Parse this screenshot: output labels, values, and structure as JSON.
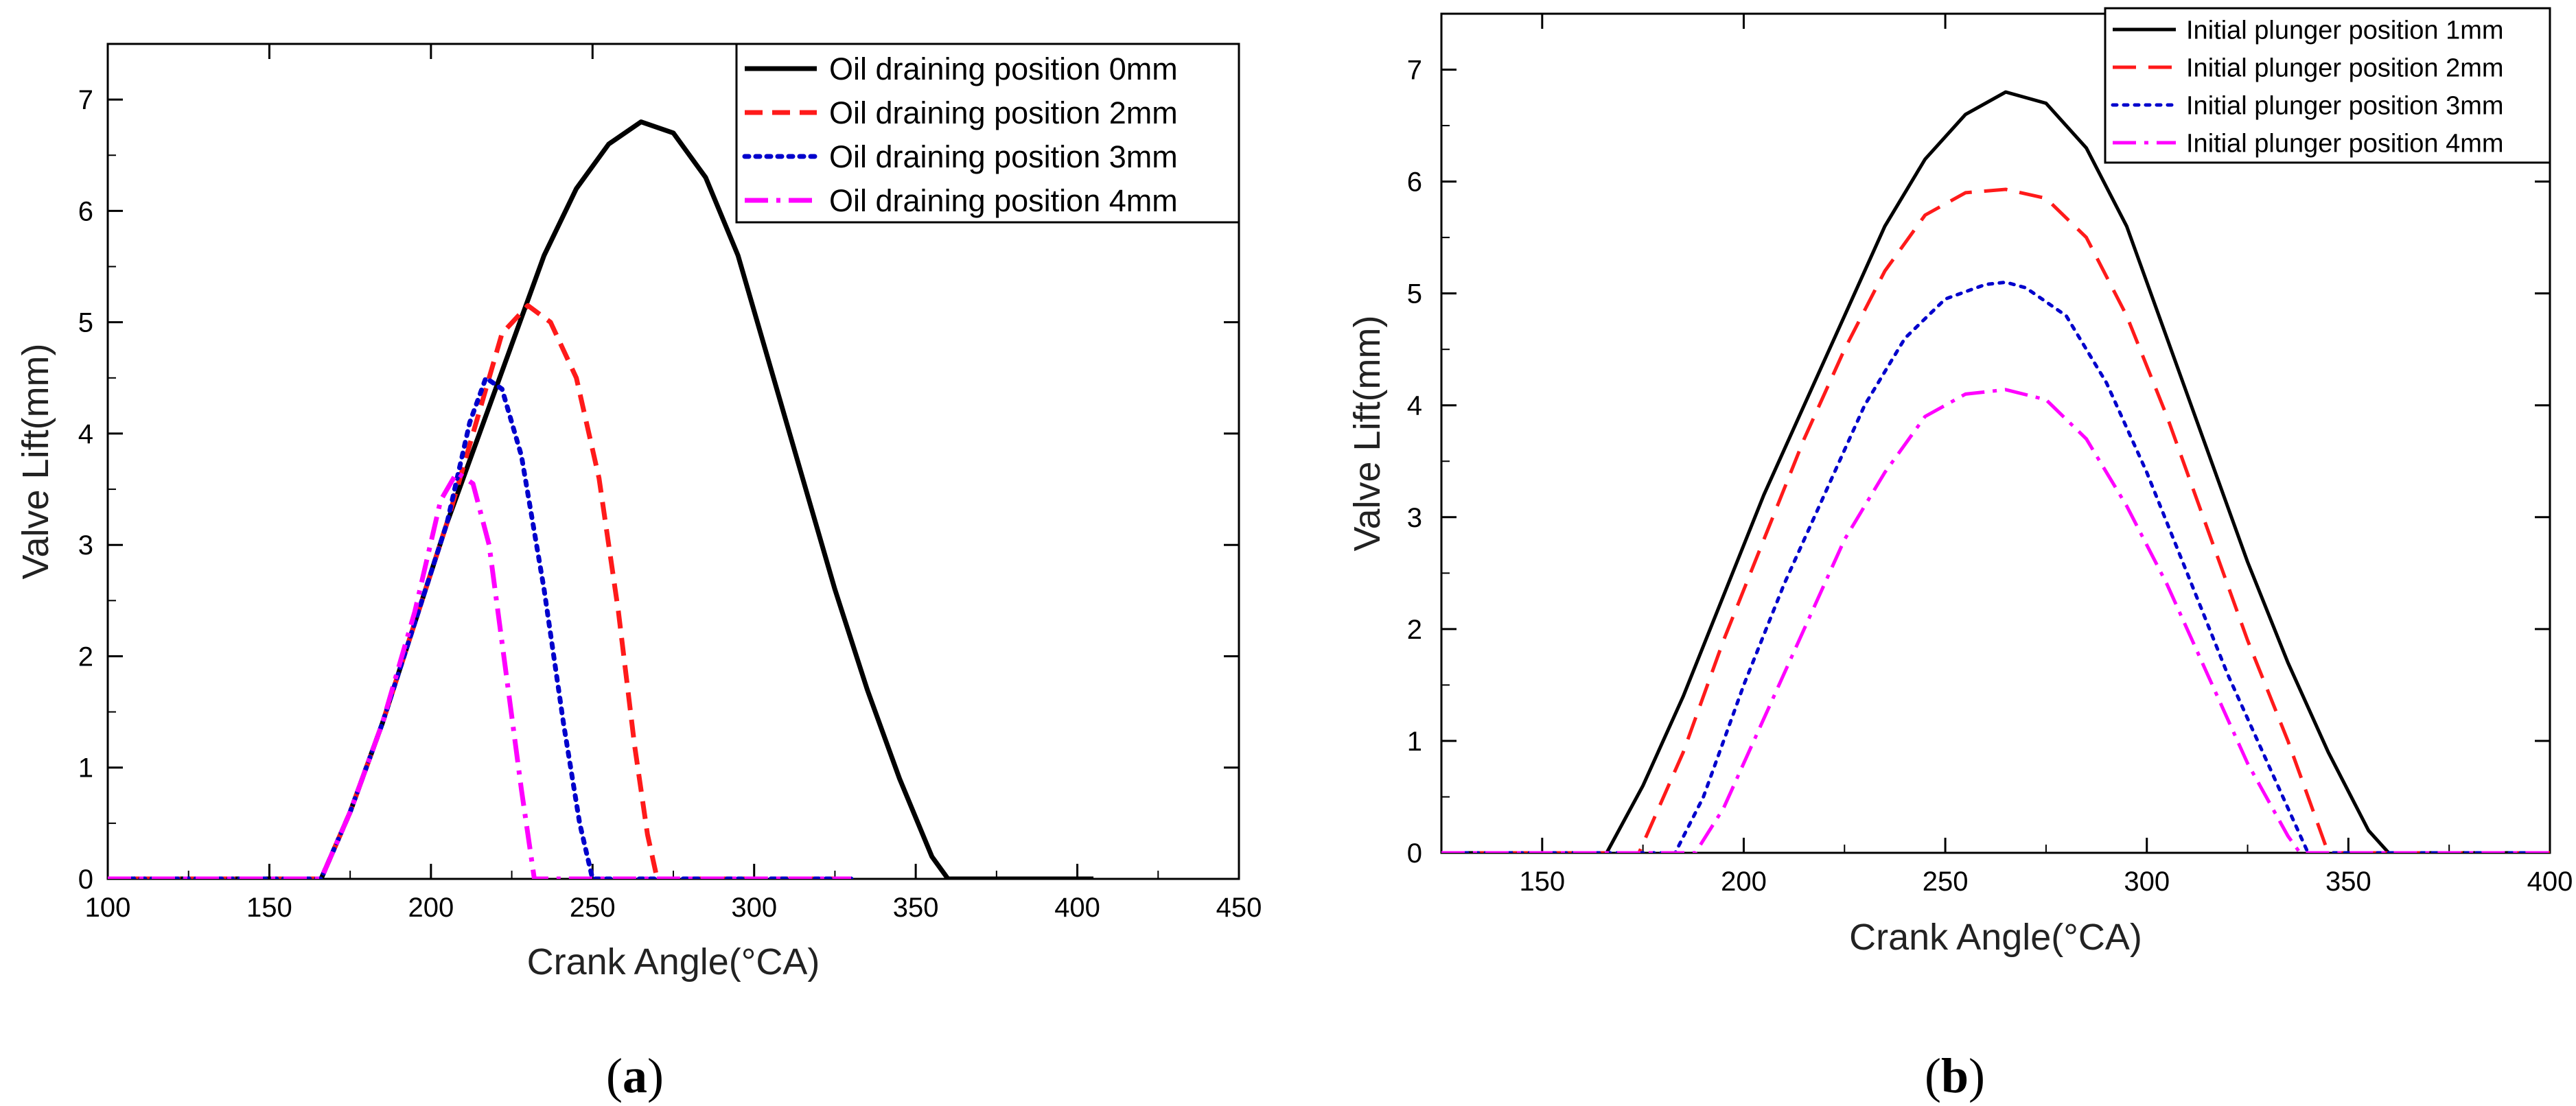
{
  "chart_data": [
    {
      "type": "line",
      "panel_label": "a",
      "xlabel": "Crank Angle(°CA)",
      "ylabel": "Valve Lift(mm)",
      "xlim": [
        100,
        450
      ],
      "ylim": [
        0,
        7.5
      ],
      "xticks": [
        100,
        150,
        200,
        250,
        300,
        350,
        400,
        450
      ],
      "yticks": [
        0,
        1,
        2,
        3,
        4,
        5,
        6,
        7
      ],
      "legend_position": "top-right",
      "series": [
        {
          "name": "Oil draining position 0mm",
          "color": "#000000",
          "style": "solid",
          "x": [
            100,
            166,
            175,
            185,
            195,
            205,
            215,
            225,
            235,
            245,
            255,
            265,
            275,
            285,
            295,
            305,
            315,
            325,
            335,
            345,
            355,
            360,
            405
          ],
          "y": [
            0,
            0,
            0.6,
            1.4,
            2.3,
            3.2,
            4.0,
            4.8,
            5.6,
            6.2,
            6.6,
            6.8,
            6.7,
            6.3,
            5.6,
            4.6,
            3.6,
            2.6,
            1.7,
            0.9,
            0.2,
            0,
            0
          ]
        },
        {
          "name": "Oil draining position 2mm",
          "color": "#ff1a1a",
          "style": "dashed",
          "x": [
            100,
            166,
            175,
            185,
            195,
            205,
            215,
            222,
            230,
            237,
            245,
            252,
            258,
            263,
            267,
            270,
            330
          ],
          "y": [
            0,
            0,
            0.6,
            1.4,
            2.3,
            3.2,
            4.2,
            4.9,
            5.15,
            5.0,
            4.5,
            3.6,
            2.4,
            1.2,
            0.4,
            0,
            0
          ]
        },
        {
          "name": "Oil draining position 3mm",
          "color": "#0000cc",
          "style": "dotted",
          "x": [
            100,
            166,
            175,
            185,
            195,
            205,
            212,
            217,
            222,
            228,
            235,
            241,
            246,
            250,
            330
          ],
          "y": [
            0,
            0,
            0.6,
            1.4,
            2.3,
            3.2,
            4.1,
            4.5,
            4.4,
            3.8,
            2.6,
            1.4,
            0.5,
            0,
            0
          ]
        },
        {
          "name": "Oil draining position 4mm",
          "color": "#ff00ff",
          "style": "dashdot",
          "x": [
            100,
            166,
            175,
            185,
            195,
            203,
            208,
            213,
            218,
            223,
            228,
            232,
            330
          ],
          "y": [
            0,
            0,
            0.6,
            1.4,
            2.4,
            3.4,
            3.65,
            3.55,
            3.0,
            1.9,
            0.8,
            0,
            0
          ]
        }
      ]
    },
    {
      "type": "line",
      "panel_label": "b",
      "xlabel": "Crank Angle(°CA)",
      "ylabel": "Valve Lift(mm)",
      "xlim": [
        125,
        400
      ],
      "ylim": [
        0,
        7.5
      ],
      "xticks": [
        150,
        200,
        250,
        300,
        350,
        400
      ],
      "yticks": [
        0,
        1,
        2,
        3,
        4,
        5,
        6,
        7
      ],
      "legend_position": "top-right",
      "series": [
        {
          "name": "Initial plunger position 1mm",
          "color": "#000000",
          "style": "solid",
          "x": [
            125,
            166,
            175,
            185,
            195,
            205,
            215,
            225,
            235,
            245,
            255,
            265,
            275,
            285,
            295,
            305,
            315,
            325,
            335,
            345,
            355,
            360,
            400
          ],
          "y": [
            0,
            0,
            0.6,
            1.4,
            2.3,
            3.2,
            4.0,
            4.8,
            5.6,
            6.2,
            6.6,
            6.8,
            6.7,
            6.3,
            5.6,
            4.6,
            3.6,
            2.6,
            1.7,
            0.9,
            0.2,
            0,
            0
          ]
        },
        {
          "name": "Initial plunger position 2mm",
          "color": "#ff1a1a",
          "style": "longdash",
          "x": [
            125,
            174,
            185,
            195,
            205,
            215,
            225,
            235,
            245,
            255,
            265,
            275,
            285,
            295,
            305,
            315,
            325,
            335,
            345,
            400
          ],
          "y": [
            0,
            0,
            0.9,
            1.9,
            2.8,
            3.7,
            4.5,
            5.2,
            5.7,
            5.9,
            5.93,
            5.85,
            5.5,
            4.8,
            3.9,
            2.9,
            1.9,
            1.0,
            0,
            0
          ]
        },
        {
          "name": "Initial plunger position 3mm",
          "color": "#0000cc",
          "style": "dotted",
          "x": [
            125,
            183,
            190,
            200,
            210,
            220,
            230,
            240,
            250,
            260,
            265,
            270,
            280,
            290,
            300,
            310,
            320,
            330,
            340,
            400
          ],
          "y": [
            0,
            0,
            0.5,
            1.5,
            2.4,
            3.2,
            4.0,
            4.6,
            4.95,
            5.08,
            5.1,
            5.05,
            4.8,
            4.2,
            3.4,
            2.5,
            1.6,
            0.8,
            0,
            0
          ]
        },
        {
          "name": "Initial plunger position 4mm",
          "color": "#ff00ff",
          "style": "dashdot",
          "x": [
            125,
            188,
            195,
            205,
            215,
            225,
            235,
            245,
            255,
            265,
            275,
            285,
            295,
            305,
            315,
            325,
            335,
            338,
            400
          ],
          "y": [
            0,
            0,
            0.4,
            1.2,
            2.0,
            2.8,
            3.4,
            3.9,
            4.1,
            4.14,
            4.05,
            3.7,
            3.1,
            2.4,
            1.6,
            0.8,
            0.15,
            0,
            0
          ]
        }
      ]
    }
  ]
}
